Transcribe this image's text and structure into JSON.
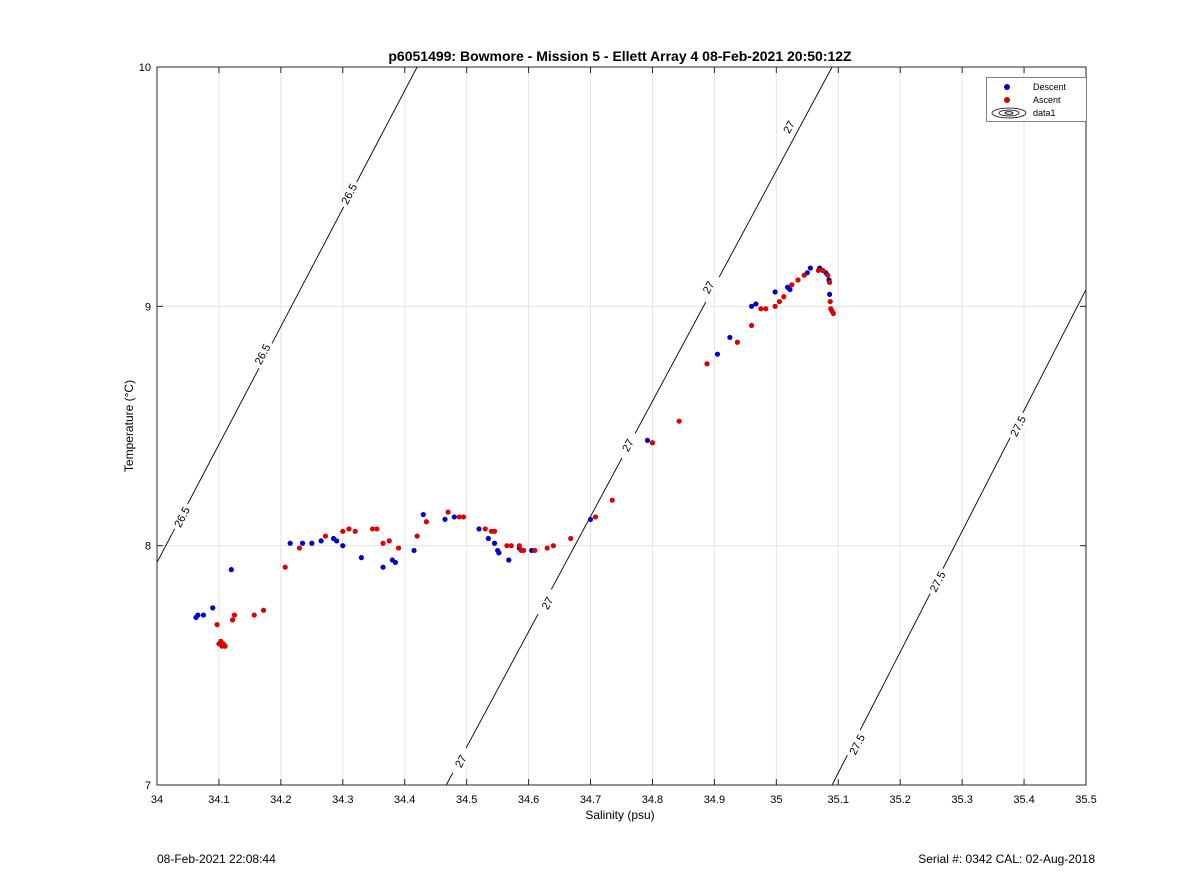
{
  "title": "p6051499: Bowmore - Mission 5 - Ellett Array 4 08-Feb-2021 20:50:12Z",
  "footer": {
    "left": "08-Feb-2021 22:08:44",
    "right": "Serial #: 0342  CAL: 02-Aug-2018"
  },
  "legend": {
    "descent": "Descent",
    "ascent": "Ascent",
    "data1": "data1"
  },
  "colors": {
    "descent": "#0000cc",
    "ascent": "#dd0000",
    "grid": "#e3e3e3",
    "contour": "#000000"
  },
  "chart_data": {
    "type": "scatter",
    "title": "p6051499: Bowmore - Mission 5 - Ellett Array 4 08-Feb-2021 20:50:12Z",
    "xlabel": "Salinity (psu)",
    "ylabel": "Temperature (°C)",
    "xlim": [
      34,
      35.5
    ],
    "ylim": [
      7,
      10
    ],
    "xticks": [
      "34",
      "34.1",
      "34.2",
      "34.3",
      "34.4",
      "34.5",
      "34.6",
      "34.7",
      "34.8",
      "34.9",
      "35",
      "35.1",
      "35.2",
      "35.3",
      "35.4",
      "35.5"
    ],
    "yticks": [
      "7",
      "8",
      "9",
      "10"
    ],
    "grid": true,
    "legend_position": "top-right",
    "contours": [
      {
        "label": "26.5",
        "points": [
          [
            34.0,
            7.93
          ],
          [
            34.42,
            10.0
          ]
        ],
        "label_at": [
          [
            34.04,
            8.12
          ],
          [
            34.17,
            8.8
          ],
          [
            34.31,
            9.47
          ]
        ]
      },
      {
        "label": "27",
        "points": [
          [
            34.467,
            7.0
          ],
          [
            35.09,
            10.0
          ]
        ],
        "label_at": [
          [
            34.49,
            7.1
          ],
          [
            34.63,
            7.76
          ],
          [
            34.76,
            8.42
          ],
          [
            34.89,
            9.08
          ],
          [
            35.02,
            9.75
          ]
        ]
      },
      {
        "label": "27.5",
        "points": [
          [
            35.09,
            7.0
          ],
          [
            35.5,
            9.07
          ]
        ],
        "label_at": [
          [
            35.13,
            7.17
          ],
          [
            35.26,
            7.85
          ],
          [
            35.39,
            8.5
          ]
        ]
      }
    ],
    "series": [
      {
        "name": "Descent",
        "points": [
          [
            34.063,
            7.7
          ],
          [
            34.066,
            7.71
          ],
          [
            34.075,
            7.71
          ],
          [
            34.09,
            7.74
          ],
          [
            34.12,
            7.9
          ],
          [
            34.215,
            8.01
          ],
          [
            34.235,
            8.01
          ],
          [
            34.25,
            8.01
          ],
          [
            34.265,
            8.02
          ],
          [
            34.285,
            8.03
          ],
          [
            34.29,
            8.02
          ],
          [
            34.3,
            8.0
          ],
          [
            34.33,
            7.95
          ],
          [
            34.365,
            7.91
          ],
          [
            34.38,
            7.94
          ],
          [
            34.385,
            7.93
          ],
          [
            34.415,
            7.98
          ],
          [
            34.43,
            8.13
          ],
          [
            34.465,
            8.11
          ],
          [
            34.48,
            8.12
          ],
          [
            34.52,
            8.07
          ],
          [
            34.535,
            8.03
          ],
          [
            34.545,
            8.01
          ],
          [
            34.55,
            7.98
          ],
          [
            34.552,
            7.97
          ],
          [
            34.568,
            7.94
          ],
          [
            34.585,
            7.99
          ],
          [
            34.605,
            7.98
          ],
          [
            34.7,
            8.11
          ],
          [
            34.792,
            8.44
          ],
          [
            34.905,
            8.8
          ],
          [
            34.925,
            8.87
          ],
          [
            34.96,
            9.0
          ],
          [
            34.967,
            9.01
          ],
          [
            34.998,
            9.06
          ],
          [
            35.018,
            9.08
          ],
          [
            35.022,
            9.07
          ],
          [
            35.05,
            9.14
          ],
          [
            35.055,
            9.16
          ],
          [
            35.07,
            9.16
          ],
          [
            35.08,
            9.14
          ],
          [
            35.085,
            9.11
          ],
          [
            35.086,
            9.05
          ]
        ]
      },
      {
        "name": "Ascent",
        "points": [
          [
            34.097,
            7.67
          ],
          [
            34.1,
            7.59
          ],
          [
            34.103,
            7.6
          ],
          [
            34.105,
            7.58
          ],
          [
            34.107,
            7.59
          ],
          [
            34.11,
            7.58
          ],
          [
            34.122,
            7.69
          ],
          [
            34.125,
            7.71
          ],
          [
            34.157,
            7.71
          ],
          [
            34.172,
            7.73
          ],
          [
            34.207,
            7.91
          ],
          [
            34.23,
            7.99
          ],
          [
            34.272,
            8.04
          ],
          [
            34.3,
            8.06
          ],
          [
            34.31,
            8.07
          ],
          [
            34.32,
            8.06
          ],
          [
            34.348,
            8.07
          ],
          [
            34.355,
            8.07
          ],
          [
            34.365,
            8.01
          ],
          [
            34.375,
            8.02
          ],
          [
            34.39,
            7.99
          ],
          [
            34.42,
            8.04
          ],
          [
            34.435,
            8.1
          ],
          [
            34.47,
            8.14
          ],
          [
            34.488,
            8.12
          ],
          [
            34.495,
            8.12
          ],
          [
            34.53,
            8.07
          ],
          [
            34.54,
            8.06
          ],
          [
            34.545,
            8.06
          ],
          [
            34.565,
            8.0
          ],
          [
            34.572,
            8.0
          ],
          [
            34.585,
            8.0
          ],
          [
            34.588,
            7.98
          ],
          [
            34.592,
            7.98
          ],
          [
            34.61,
            7.98
          ],
          [
            34.63,
            7.99
          ],
          [
            34.64,
            8.0
          ],
          [
            34.668,
            8.03
          ],
          [
            34.708,
            8.12
          ],
          [
            34.735,
            8.19
          ],
          [
            34.8,
            8.43
          ],
          [
            34.843,
            8.52
          ],
          [
            34.888,
            8.76
          ],
          [
            34.937,
            8.85
          ],
          [
            34.96,
            8.92
          ],
          [
            34.975,
            8.99
          ],
          [
            34.983,
            8.99
          ],
          [
            34.998,
            9.0
          ],
          [
            35.005,
            9.02
          ],
          [
            35.012,
            9.04
          ],
          [
            35.025,
            9.09
          ],
          [
            35.035,
            9.11
          ],
          [
            35.045,
            9.13
          ],
          [
            35.068,
            9.15
          ],
          [
            35.075,
            9.15
          ],
          [
            35.083,
            9.13
          ],
          [
            35.086,
            9.1
          ],
          [
            35.087,
            9.02
          ],
          [
            35.088,
            8.99
          ],
          [
            35.09,
            8.98
          ],
          [
            35.092,
            8.97
          ]
        ]
      }
    ]
  }
}
